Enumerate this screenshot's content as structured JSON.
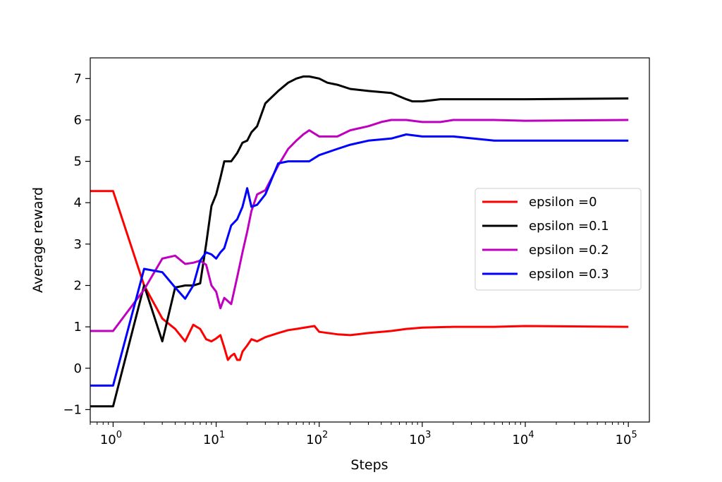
{
  "chart_data": {
    "type": "line",
    "xscale": "log",
    "xlabel": "Steps",
    "ylabel": "Average reward",
    "xlim": [
      0.6,
      160000
    ],
    "ylim": [
      -1.3,
      7.5
    ],
    "x_ticks": [
      {
        "value": 1,
        "base": "10",
        "exp": "0"
      },
      {
        "value": 10,
        "base": "10",
        "exp": "1"
      },
      {
        "value": 100,
        "base": "10",
        "exp": "2"
      },
      {
        "value": 1000,
        "base": "10",
        "exp": "3"
      },
      {
        "value": 10000,
        "base": "10",
        "exp": "4"
      },
      {
        "value": 100000,
        "base": "10",
        "exp": "5"
      }
    ],
    "y_ticks": [
      {
        "value": 7,
        "label": "7"
      },
      {
        "value": 6,
        "label": "6"
      },
      {
        "value": 5,
        "label": "5"
      },
      {
        "value": 4,
        "label": "4"
      },
      {
        "value": 3,
        "label": "3"
      },
      {
        "value": 2,
        "label": "2"
      },
      {
        "value": 1,
        "label": "1"
      },
      {
        "value": 0,
        "label": "0"
      },
      {
        "value": -1,
        "label": "−1"
      }
    ],
    "grid": false,
    "legend_position": "center-right",
    "series": [
      {
        "name": "epsilon =0",
        "color": "#ff0000",
        "points": [
          [
            0.6,
            4.28
          ],
          [
            1,
            4.28
          ],
          [
            2,
            2.0
          ],
          [
            3,
            1.2
          ],
          [
            4,
            0.95
          ],
          [
            5,
            0.65
          ],
          [
            6,
            1.05
          ],
          [
            7,
            0.95
          ],
          [
            8,
            0.7
          ],
          [
            9,
            0.65
          ],
          [
            10,
            0.72
          ],
          [
            11,
            0.8
          ],
          [
            12,
            0.5
          ],
          [
            13,
            0.2
          ],
          [
            14,
            0.3
          ],
          [
            15,
            0.35
          ],
          [
            16,
            0.2
          ],
          [
            17,
            0.2
          ],
          [
            18,
            0.4
          ],
          [
            20,
            0.55
          ],
          [
            22,
            0.7
          ],
          [
            25,
            0.65
          ],
          [
            30,
            0.75
          ],
          [
            40,
            0.85
          ],
          [
            50,
            0.92
          ],
          [
            60,
            0.95
          ],
          [
            80,
            1.0
          ],
          [
            90,
            1.02
          ],
          [
            100,
            0.88
          ],
          [
            150,
            0.82
          ],
          [
            200,
            0.8
          ],
          [
            300,
            0.85
          ],
          [
            500,
            0.9
          ],
          [
            700,
            0.95
          ],
          [
            1000,
            0.98
          ],
          [
            2000,
            1.0
          ],
          [
            5000,
            1.0
          ],
          [
            10000,
            1.02
          ],
          [
            100000,
            1.0
          ]
        ]
      },
      {
        "name": "epsilon =0.1",
        "color": "#000000",
        "points": [
          [
            0.6,
            -0.92
          ],
          [
            1,
            -0.92
          ],
          [
            2,
            2.0
          ],
          [
            3,
            0.65
          ],
          [
            4,
            1.95
          ],
          [
            5,
            2.0
          ],
          [
            6,
            2.0
          ],
          [
            7,
            2.05
          ],
          [
            8,
            3.0
          ],
          [
            9,
            3.92
          ],
          [
            10,
            4.2
          ],
          [
            11,
            4.6
          ],
          [
            12,
            5.0
          ],
          [
            14,
            5.0
          ],
          [
            16,
            5.2
          ],
          [
            18,
            5.45
          ],
          [
            20,
            5.5
          ],
          [
            22,
            5.7
          ],
          [
            25,
            5.85
          ],
          [
            30,
            6.4
          ],
          [
            40,
            6.7
          ],
          [
            50,
            6.9
          ],
          [
            60,
            7.0
          ],
          [
            70,
            7.05
          ],
          [
            80,
            7.05
          ],
          [
            100,
            7.0
          ],
          [
            120,
            6.9
          ],
          [
            150,
            6.85
          ],
          [
            200,
            6.75
          ],
          [
            300,
            6.7
          ],
          [
            500,
            6.65
          ],
          [
            700,
            6.5
          ],
          [
            800,
            6.45
          ],
          [
            1000,
            6.45
          ],
          [
            1500,
            6.5
          ],
          [
            2000,
            6.5
          ],
          [
            5000,
            6.5
          ],
          [
            10000,
            6.5
          ],
          [
            100000,
            6.52
          ]
        ]
      },
      {
        "name": "epsilon =0.2",
        "color": "#bf00bf",
        "points": [
          [
            0.6,
            0.9
          ],
          [
            1,
            0.9
          ],
          [
            2,
            1.9
          ],
          [
            3,
            2.65
          ],
          [
            4,
            2.72
          ],
          [
            5,
            2.52
          ],
          [
            6,
            2.55
          ],
          [
            7,
            2.6
          ],
          [
            8,
            2.5
          ],
          [
            9,
            2.0
          ],
          [
            10,
            1.85
          ],
          [
            11,
            1.45
          ],
          [
            12,
            1.7
          ],
          [
            14,
            1.55
          ],
          [
            16,
            2.2
          ],
          [
            18,
            2.8
          ],
          [
            20,
            3.3
          ],
          [
            22,
            3.8
          ],
          [
            25,
            4.2
          ],
          [
            30,
            4.3
          ],
          [
            40,
            4.9
          ],
          [
            50,
            5.3
          ],
          [
            60,
            5.5
          ],
          [
            70,
            5.65
          ],
          [
            80,
            5.75
          ],
          [
            100,
            5.6
          ],
          [
            150,
            5.6
          ],
          [
            200,
            5.75
          ],
          [
            300,
            5.85
          ],
          [
            400,
            5.95
          ],
          [
            500,
            6.0
          ],
          [
            700,
            6.0
          ],
          [
            1000,
            5.95
          ],
          [
            1500,
            5.95
          ],
          [
            2000,
            6.0
          ],
          [
            5000,
            6.0
          ],
          [
            10000,
            5.98
          ],
          [
            100000,
            6.0
          ]
        ]
      },
      {
        "name": "epsilon =0.3",
        "color": "#0000ff",
        "points": [
          [
            0.6,
            -0.42
          ],
          [
            1,
            -0.42
          ],
          [
            2,
            2.4
          ],
          [
            3,
            2.32
          ],
          [
            4,
            1.95
          ],
          [
            5,
            1.68
          ],
          [
            6,
            2.0
          ],
          [
            7,
            2.6
          ],
          [
            8,
            2.8
          ],
          [
            9,
            2.75
          ],
          [
            10,
            2.65
          ],
          [
            11,
            2.8
          ],
          [
            12,
            2.9
          ],
          [
            14,
            3.45
          ],
          [
            16,
            3.6
          ],
          [
            18,
            3.9
          ],
          [
            20,
            4.35
          ],
          [
            22,
            3.9
          ],
          [
            25,
            3.95
          ],
          [
            30,
            4.2
          ],
          [
            40,
            4.95
          ],
          [
            50,
            5.0
          ],
          [
            60,
            5.0
          ],
          [
            80,
            5.0
          ],
          [
            100,
            5.15
          ],
          [
            150,
            5.3
          ],
          [
            200,
            5.4
          ],
          [
            300,
            5.5
          ],
          [
            500,
            5.55
          ],
          [
            700,
            5.65
          ],
          [
            1000,
            5.6
          ],
          [
            2000,
            5.6
          ],
          [
            5000,
            5.5
          ],
          [
            10000,
            5.5
          ],
          [
            100000,
            5.5
          ]
        ]
      }
    ]
  }
}
